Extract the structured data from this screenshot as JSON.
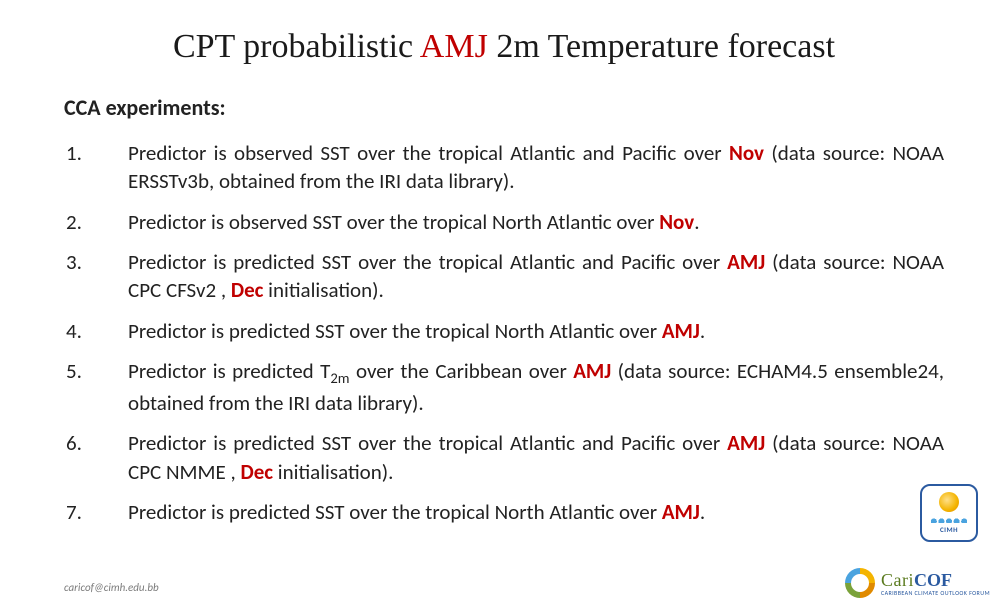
{
  "title_pre": "CPT probabilistic ",
  "title_amj": "AMJ",
  "title_post": " 2m Temperature forecast",
  "subhead": "CCA experiments:",
  "highlight_color": "#c00000",
  "text_color": "#222222",
  "background_color": "#ffffff",
  "title_fontsize": 34,
  "body_fontsize": 21,
  "items": [
    {
      "n": "1.",
      "segments": [
        {
          "t": "Predictor is observed SST over the tropical Atlantic and Pacific over "
        },
        {
          "t": "Nov",
          "hl": true
        },
        {
          "t": " (data source: NOAA ERSSTv3b, obtained from the IRI data library)."
        }
      ]
    },
    {
      "n": "2.",
      "segments": [
        {
          "t": "Predictor is observed SST over the tropical North Atlantic over "
        },
        {
          "t": "Nov",
          "hl": true
        },
        {
          "t": "."
        }
      ]
    },
    {
      "n": "3.",
      "segments": [
        {
          "t": "Predictor is predicted SST over the tropical Atlantic and Pacific over "
        },
        {
          "t": "AMJ",
          "hl": true
        },
        {
          "t": " (data source: NOAA CPC CFSv2 , "
        },
        {
          "t": "Dec",
          "hl": true
        },
        {
          "t": " initialisation)."
        }
      ]
    },
    {
      "n": "4.",
      "segments": [
        {
          "t": "Predictor is predicted SST over the tropical North Atlantic over "
        },
        {
          "t": "AMJ",
          "hl": true
        },
        {
          "t": "."
        }
      ]
    },
    {
      "n": "5.",
      "segments": [
        {
          "t": "Predictor is predicted T"
        },
        {
          "t": "2m",
          "sub": true
        },
        {
          "t": " over the Caribbean over "
        },
        {
          "t": "AMJ",
          "hl": true
        },
        {
          "t": " (data source: ECHAM4.5 ensemble24, obtained from the IRI data library)."
        }
      ]
    },
    {
      "n": "6.",
      "segments": [
        {
          "t": "Predictor is predicted SST over the tropical Atlantic and Pacific over "
        },
        {
          "t": "AMJ",
          "hl": true
        },
        {
          "t": " (data source: NOAA CPC NMME , "
        },
        {
          "t": "Dec",
          "hl": true
        },
        {
          "t": " initialisation)."
        }
      ]
    },
    {
      "n": "7.",
      "segments": [
        {
          "t": "Predictor is predicted SST over the tropical North Atlantic over "
        },
        {
          "t": "AMJ",
          "hl": true
        },
        {
          "t": "."
        }
      ]
    }
  ],
  "footer": "caricof@cimh.edu.bb",
  "logo_cimh_label": "CIMH",
  "logo_caricof_cari": "Cari",
  "logo_caricof_cof": "COF",
  "logo_caricof_tag": "CARIBBEAN CLIMATE OUTLOOK FORUM"
}
